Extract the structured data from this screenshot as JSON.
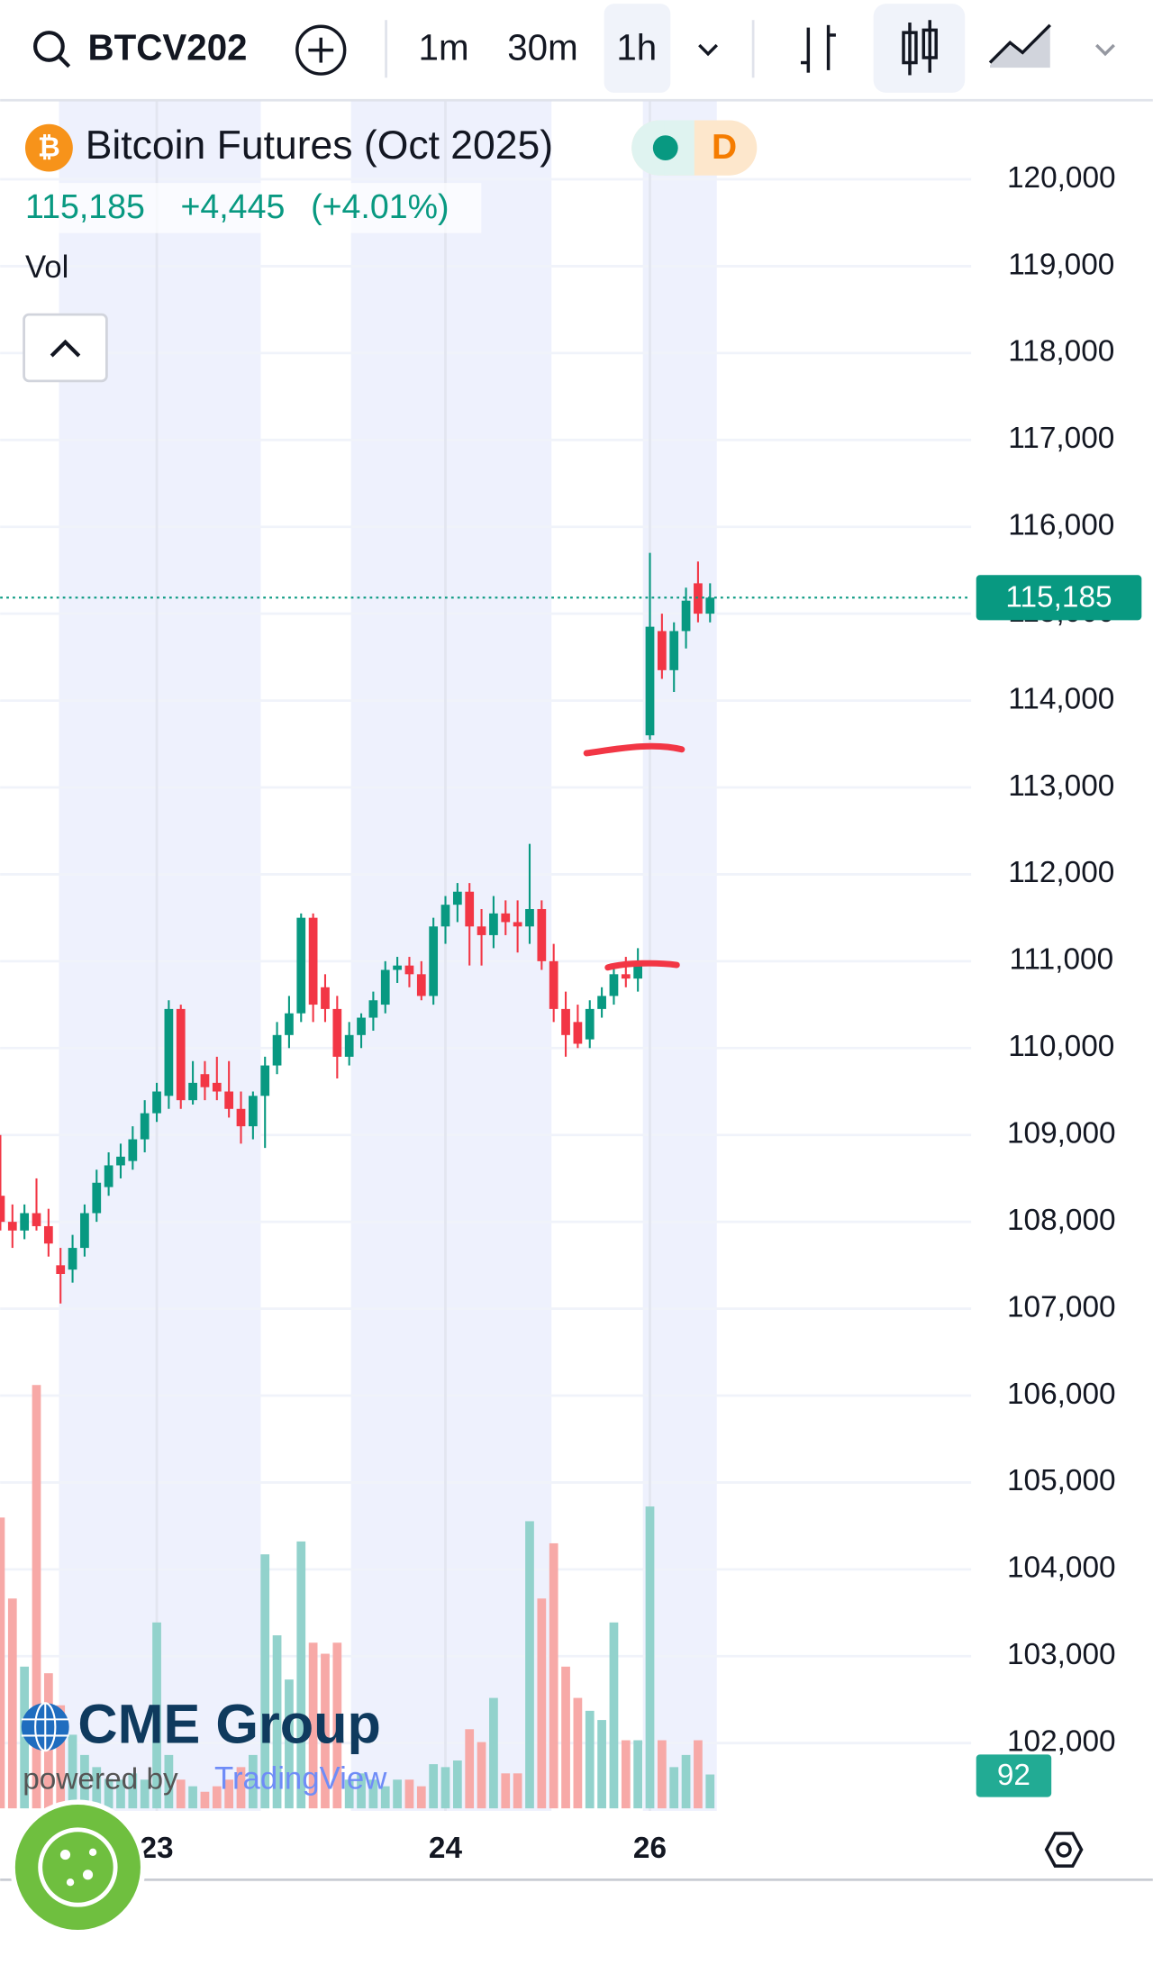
{
  "toolbar": {
    "symbol": "BTCV202",
    "intervals": [
      "1m",
      "30m",
      "1h"
    ]
  },
  "legend": {
    "title": "Bitcoin Futures (Oct 2025)",
    "badge": "D",
    "price": "115,185",
    "change": "+4,445",
    "change_pct": "(+4.01%)",
    "volume": "Vol"
  },
  "branding": {
    "name": "CME Group",
    "powered_by": "powered by",
    "provider": "TradingView"
  },
  "chart_data": {
    "type": "candlestick",
    "categories": [
      null,
      null,
      null,
      null,
      null,
      null,
      null,
      null,
      null,
      null,
      null,
      null,
      null,
      "23",
      null,
      null,
      null,
      null,
      null,
      null,
      null,
      null,
      null,
      null,
      null,
      null,
      null,
      null,
      null,
      null,
      null,
      null,
      null,
      null,
      null,
      null,
      null,
      "24",
      null,
      null,
      null,
      null,
      null,
      null,
      null,
      null,
      null,
      null,
      null,
      null,
      null,
      null,
      null,
      null,
      "26",
      null,
      null,
      null,
      null,
      null
    ],
    "open": [
      108300,
      108000,
      107900,
      108100,
      107950,
      107500,
      107450,
      107700,
      108100,
      108400,
      108650,
      108700,
      108950,
      109250,
      109450,
      110450,
      109400,
      109700,
      109600,
      109500,
      109300,
      109100,
      109450,
      109800,
      110150,
      110400,
      111500,
      110700,
      110450,
      109900,
      110150,
      110350,
      110500,
      110900,
      110950,
      110850,
      110600,
      111400,
      111650,
      111800,
      111400,
      111300,
      111550,
      111450,
      111400,
      111600,
      111000,
      110450,
      110300,
      110100,
      110450,
      110600,
      110850,
      110800,
      113600,
      114800,
      114350,
      114800,
      115350,
      115000
    ],
    "high": [
      109000,
      108200,
      108200,
      108500,
      108150,
      107700,
      107850,
      108200,
      108600,
      108800,
      108900,
      109100,
      109400,
      109600,
      110550,
      110500,
      109850,
      109850,
      109900,
      109850,
      109500,
      109500,
      109900,
      110300,
      110600,
      111550,
      111550,
      110850,
      110600,
      110300,
      110400,
      110650,
      111000,
      111050,
      111050,
      111000,
      111500,
      111750,
      111900,
      111900,
      111600,
      111750,
      111700,
      111700,
      112350,
      111700,
      111200,
      110650,
      110500,
      110550,
      110700,
      110950,
      111050,
      111150,
      115700,
      115000,
      114900,
      115300,
      115600,
      115350
    ],
    "low": [
      107900,
      107700,
      107800,
      107900,
      107600,
      107060,
      107300,
      107600,
      108000,
      108300,
      108500,
      108600,
      108800,
      109150,
      109300,
      109300,
      109350,
      109400,
      109400,
      109200,
      108900,
      108950,
      108850,
      109700,
      110000,
      110300,
      110300,
      110300,
      109650,
      109800,
      110000,
      110200,
      110400,
      110750,
      110700,
      110550,
      110500,
      111200,
      111450,
      110950,
      110950,
      111150,
      111300,
      111100,
      111200,
      110900,
      110300,
      109900,
      110000,
      110000,
      110350,
      110500,
      110700,
      110650,
      113550,
      114250,
      114100,
      114600,
      114900,
      114900
    ],
    "close": [
      108000,
      107900,
      108100,
      107950,
      107750,
      107400,
      107700,
      108100,
      108450,
      108650,
      108750,
      108950,
      109250,
      109500,
      110450,
      109400,
      109600,
      109550,
      109500,
      109300,
      109100,
      109450,
      109800,
      110150,
      110400,
      111500,
      110500,
      110450,
      109900,
      110150,
      110350,
      110550,
      110900,
      110950,
      110850,
      110600,
      111400,
      111650,
      111800,
      111400,
      111300,
      111550,
      111450,
      111400,
      111600,
      111000,
      110450,
      110150,
      110050,
      110450,
      110600,
      110850,
      110800,
      111000,
      114850,
      114350,
      114800,
      115150,
      115000,
      115185
    ],
    "volume": [
      790,
      570,
      385,
      1150,
      367,
      280,
      200,
      145,
      112,
      80,
      78,
      95,
      78,
      505,
      145,
      78,
      60,
      45,
      60,
      78,
      112,
      145,
      690,
      470,
      350,
      725,
      450,
      420,
      450,
      78,
      95,
      78,
      60,
      78,
      78,
      60,
      120,
      112,
      130,
      215,
      180,
      300,
      95,
      95,
      780,
      570,
      720,
      385,
      300,
      265,
      240,
      505,
      185,
      185,
      820,
      185,
      112,
      145,
      185,
      92
    ],
    "volume_ylim": [
      0,
      1440
    ],
    "up_color": "#089981",
    "down_color": "#f23645",
    "up_volume_color": "#92d2cc",
    "down_volume_color": "#f7a9a7",
    "ylim": [
      101220,
      120910
    ],
    "yticks": [
      {
        "value": 102000,
        "label": "102,000"
      },
      {
        "value": 103000,
        "label": "103,000"
      },
      {
        "value": 104000,
        "label": "104,000"
      },
      {
        "value": 105000,
        "label": "105,000"
      },
      {
        "value": 106000,
        "label": "106,000"
      },
      {
        "value": 107000,
        "label": "107,000"
      },
      {
        "value": 108000,
        "label": "108,000"
      },
      {
        "value": 109000,
        "label": "109,000"
      },
      {
        "value": 110000,
        "label": "110,000"
      },
      {
        "value": 111000,
        "label": "111,000"
      },
      {
        "value": 112000,
        "label": "112,000"
      },
      {
        "value": 113000,
        "label": "113,000"
      },
      {
        "value": 114000,
        "label": "114,000"
      },
      {
        "value": 115000,
        "label": "115,000"
      },
      {
        "value": 116000,
        "label": "116,000"
      },
      {
        "value": 117000,
        "label": "117,000"
      },
      {
        "value": 118000,
        "label": "118,000"
      },
      {
        "value": 119000,
        "label": "119,000"
      },
      {
        "value": 120000,
        "label": "120,000"
      }
    ],
    "grid": true
  }
}
